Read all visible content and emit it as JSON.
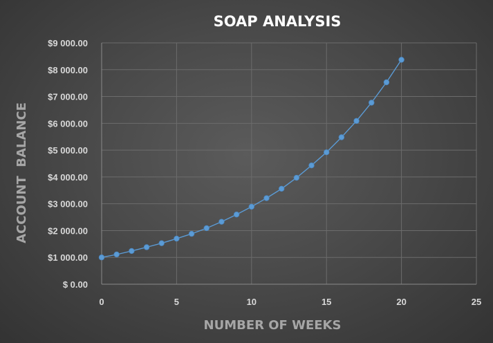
{
  "chart_data": {
    "type": "scatter",
    "title": "SOAP ANALYSIS",
    "xlabel": "NUMBER OF WEEKS",
    "ylabel": "ACCOUNT  BALANCE",
    "xlim": [
      0,
      25
    ],
    "ylim": [
      0,
      9000
    ],
    "x_ticks": [
      "0",
      "5",
      "10",
      "15",
      "20",
      "25"
    ],
    "x_tick_values": [
      0,
      5,
      10,
      15,
      20,
      25
    ],
    "y_ticks": [
      "$ 0.00",
      "$1 000.00",
      "$2 000.00",
      "$3 000.00",
      "$4 000.00",
      "$5 000.00",
      "$6 000.00",
      "$7 000.00",
      "$8 000.00",
      "$9 000.00"
    ],
    "y_tick_values": [
      0,
      1000,
      2000,
      3000,
      4000,
      5000,
      6000,
      7000,
      8000,
      9000
    ],
    "grid": true,
    "legend": "none",
    "series": [
      {
        "x": [
          0,
          1,
          2,
          3,
          4,
          5,
          6,
          7,
          8,
          9,
          10,
          11,
          12,
          13,
          14,
          15,
          16,
          17,
          18,
          19,
          20
        ],
        "y": [
          1000,
          1110,
          1240,
          1380,
          1530,
          1700,
          1880,
          2090,
          2330,
          2600,
          2890,
          3210,
          3560,
          3970,
          4430,
          4920,
          5480,
          6090,
          6770,
          7530,
          8370
        ],
        "color": "#5b9bd5"
      }
    ]
  }
}
